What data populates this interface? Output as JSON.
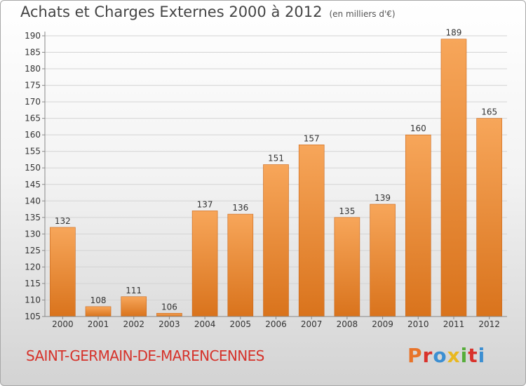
{
  "header": {
    "title": "Achats et Charges Externes 2000 à 2012",
    "subtitle": "(en milliers d'€)"
  },
  "footer": {
    "place": "SAINT-GERMAIN-DE-MARENCENNES",
    "logo": "Proxiti",
    "logo_colors": [
      "#e8742a",
      "#d9322b",
      "#3c8fd2",
      "#e9b820",
      "#56ad3a",
      "#d9322b",
      "#3c8fd2"
    ]
  },
  "chart_data": {
    "type": "bar",
    "title": "Achats et Charges Externes 2000 à 2012",
    "subtitle": "(en milliers d'€)",
    "categories": [
      "2000",
      "2001",
      "2002",
      "2003",
      "2004",
      "2005",
      "2006",
      "2007",
      "2008",
      "2009",
      "2010",
      "2011",
      "2012"
    ],
    "values": [
      132,
      108,
      111,
      106,
      137,
      136,
      151,
      157,
      135,
      139,
      160,
      189,
      165
    ],
    "data_labels": [
      "132",
      "108",
      "111",
      "106",
      "137",
      "136",
      "151",
      "157",
      "135",
      "139",
      "160",
      "189",
      "165"
    ],
    "ylim": [
      105,
      190
    ],
    "yticks": [
      "105",
      "110",
      "115",
      "120",
      "125",
      "130",
      "135",
      "140",
      "145",
      "150",
      "155",
      "160",
      "165",
      "170",
      "175",
      "180",
      "185",
      "190"
    ],
    "grid": true,
    "bar_color_light": "#f7a65a",
    "bar_color_dark": "#d9731c"
  }
}
